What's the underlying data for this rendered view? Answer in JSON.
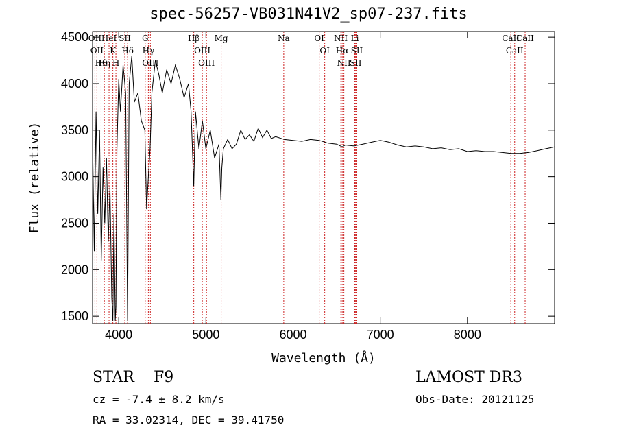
{
  "chart_data": {
    "type": "line",
    "title": "spec-56257-VB031N41V2_sp07-237.fits",
    "xlabel": "Wavelength (Å)",
    "ylabel": "Flux (relative)",
    "xlim": [
      3700,
      9000
    ],
    "ylim": [
      1420,
      4560
    ],
    "xticks": [
      4000,
      5000,
      6000,
      7000,
      8000
    ],
    "yticks": [
      1500,
      2000,
      2500,
      3000,
      3500,
      4000,
      4500
    ],
    "series": [
      {
        "name": "flux",
        "x": [
          3700,
          3720,
          3740,
          3760,
          3780,
          3800,
          3820,
          3840,
          3860,
          3880,
          3900,
          3920,
          3933,
          3945,
          3960,
          3968,
          3980,
          4000,
          4020,
          4050,
          4080,
          4102,
          4120,
          4150,
          4180,
          4220,
          4260,
          4300,
          4320,
          4340,
          4360,
          4380,
          4420,
          4460,
          4500,
          4550,
          4600,
          4650,
          4700,
          4750,
          4800,
          4830,
          4861,
          4880,
          4920,
          4960,
          5000,
          5050,
          5100,
          5150,
          5172,
          5183,
          5200,
          5250,
          5300,
          5350,
          5400,
          5450,
          5500,
          5550,
          5600,
          5650,
          5700,
          5750,
          5800,
          5900,
          6000,
          6100,
          6200,
          6300,
          6400,
          6500,
          6563,
          6600,
          6700,
          6800,
          6900,
          7000,
          7100,
          7200,
          7300,
          7400,
          7500,
          7600,
          7700,
          7800,
          7900,
          8000,
          8100,
          8200,
          8300,
          8400,
          8500,
          8600,
          8700,
          8800,
          8900,
          9000
        ],
        "y": [
          3400,
          2200,
          3700,
          2600,
          3500,
          2100,
          3100,
          2500,
          3200,
          2300,
          2900,
          1700,
          1450,
          2600,
          1450,
          1600,
          3300,
          4050,
          3700,
          4200,
          3900,
          1450,
          4000,
          4300,
          3800,
          3900,
          3600,
          3500,
          2650,
          3000,
          3300,
          3900,
          4250,
          4100,
          3900,
          4150,
          4000,
          4200,
          4050,
          3850,
          4000,
          3700,
          2900,
          3700,
          3300,
          3600,
          3300,
          3500,
          3200,
          3350,
          2750,
          3100,
          3300,
          3400,
          3300,
          3350,
          3500,
          3400,
          3450,
          3380,
          3520,
          3420,
          3500,
          3410,
          3430,
          3400,
          3390,
          3380,
          3400,
          3390,
          3360,
          3350,
          3320,
          3340,
          3330,
          3350,
          3370,
          3390,
          3370,
          3340,
          3320,
          3330,
          3320,
          3300,
          3310,
          3290,
          3300,
          3270,
          3280,
          3270,
          3270,
          3260,
          3250,
          3250,
          3260,
          3280,
          3300,
          3320
        ]
      }
    ],
    "lines": [
      {
        "wave": 3727,
        "label": "OII"
      },
      {
        "wave": 3750,
        "label": "OII"
      },
      {
        "wave": 3798,
        "label": "Hθ"
      },
      {
        "wave": 3835,
        "label": "Hη"
      },
      {
        "wave": 3889,
        "label": "HeI"
      },
      {
        "wave": 3933,
        "label": "K"
      },
      {
        "wave": 3968,
        "label": "H"
      },
      {
        "wave": 4070,
        "label": "SII"
      },
      {
        "wave": 4102,
        "label": "Hδ"
      },
      {
        "wave": 4304,
        "label": "G"
      },
      {
        "wave": 4340,
        "label": "Hγ"
      },
      {
        "wave": 4363,
        "label": "OIII"
      },
      {
        "wave": 4861,
        "label": "Hβ"
      },
      {
        "wave": 4959,
        "label": "OIII"
      },
      {
        "wave": 5007,
        "label": "OIII"
      },
      {
        "wave": 5175,
        "label": "Mg"
      },
      {
        "wave": 5893,
        "label": "Na"
      },
      {
        "wave": 6300,
        "label": "OI"
      },
      {
        "wave": 6363,
        "label": "OI"
      },
      {
        "wave": 6548,
        "label": "NII"
      },
      {
        "wave": 6563,
        "label": "Hα"
      },
      {
        "wave": 6583,
        "label": "NII"
      },
      {
        "wave": 6708,
        "label": "Li"
      },
      {
        "wave": 6717,
        "label": "SII"
      },
      {
        "wave": 6731,
        "label": "SII"
      },
      {
        "wave": 8498,
        "label": "CaII"
      },
      {
        "wave": 8542,
        "label": "CaII"
      },
      {
        "wave": 8662,
        "label": "CaII"
      }
    ]
  },
  "info": {
    "object_class": "STAR",
    "subclass": "F9",
    "survey": "LAMOST DR3",
    "redshift": "cz = -7.4 ± 8.2 km/s",
    "obs_date": "Obs-Date: 20121125",
    "coords": "RA =  33.02314, DEC =  39.41750"
  },
  "colors": {
    "spectrum": "#000000",
    "line_marker": "#cc2222",
    "axis": "#000000"
  }
}
